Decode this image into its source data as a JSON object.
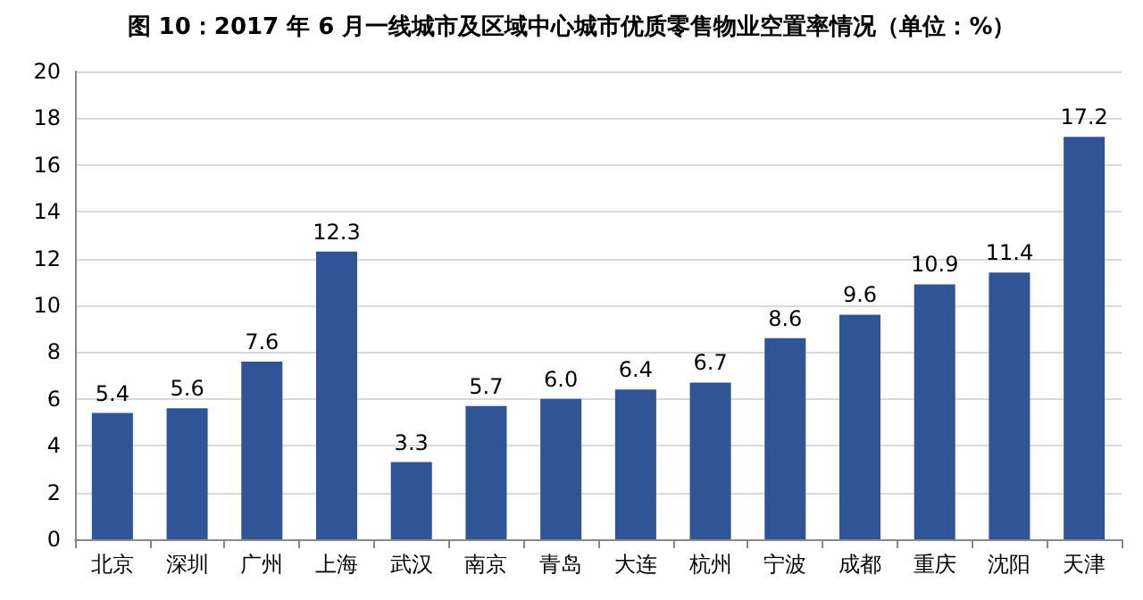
{
  "chart_data": {
    "type": "bar",
    "title": "图 10：2017 年 6 月一线城市及区域中心城市优质零售物业空置率情况（单位：%）",
    "categories": [
      "北京",
      "深圳",
      "广州",
      "上海",
      "武汉",
      "南京",
      "青岛",
      "大连",
      "杭州",
      "宁波",
      "成都",
      "重庆",
      "沈阳",
      "天津"
    ],
    "values": [
      5.4,
      5.6,
      7.6,
      12.3,
      3.3,
      5.7,
      6.0,
      6.4,
      6.7,
      8.6,
      9.6,
      10.9,
      11.4,
      17.2
    ],
    "value_labels": [
      "5.4",
      "5.6",
      "7.6",
      "12.3",
      "3.3",
      "5.7",
      "6.0",
      "6.4",
      "6.7",
      "8.6",
      "9.6",
      "10.9",
      "11.4",
      "17.2"
    ],
    "color": "#2f5597",
    "ylim": [
      0,
      20
    ],
    "yticks": [
      0,
      2,
      4,
      6,
      8,
      10,
      12,
      14,
      16,
      18,
      20
    ],
    "grid": "y"
  }
}
